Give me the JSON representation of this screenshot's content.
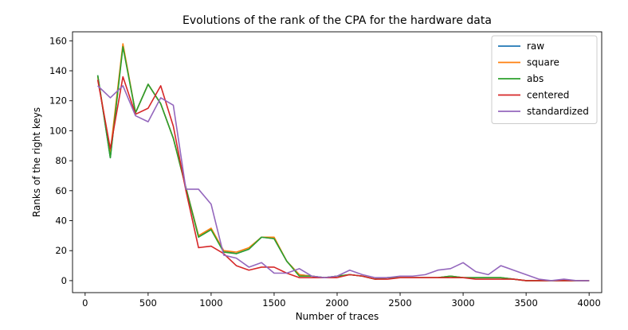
{
  "chart_data": {
    "type": "line",
    "title": "Evolutions of the rank of the CPA for the hardware data",
    "xlabel": "Number of traces",
    "ylabel": "Ranks of the right keys",
    "xlim": [
      -100,
      4100
    ],
    "ylim": [
      -8,
      166
    ],
    "xticks": [
      0,
      500,
      1000,
      1500,
      2000,
      2500,
      3000,
      3500,
      4000
    ],
    "yticks": [
      0,
      20,
      40,
      60,
      80,
      100,
      120,
      140,
      160
    ],
    "grid": false,
    "legend_position": "top-right",
    "x": [
      100,
      200,
      300,
      400,
      500,
      600,
      700,
      800,
      900,
      1000,
      1100,
      1200,
      1300,
      1400,
      1500,
      1600,
      1700,
      1800,
      1900,
      2000,
      2100,
      2200,
      2300,
      2400,
      2500,
      2600,
      2700,
      2800,
      2900,
      3000,
      3100,
      3200,
      3300,
      3400,
      3500,
      3600,
      3700,
      3800,
      3900,
      4000
    ],
    "series": [
      {
        "name": "raw",
        "color": "#1f77b4",
        "values": [
          137,
          82,
          157,
          112,
          131,
          118,
          95,
          62,
          30,
          34,
          20,
          18,
          21,
          29,
          28,
          13,
          4,
          3,
          2,
          3,
          4,
          3,
          1,
          2,
          2,
          2,
          2,
          2,
          3,
          2,
          2,
          2,
          2,
          1,
          0,
          0,
          0,
          0,
          0,
          0
        ]
      },
      {
        "name": "square",
        "color": "#ff7f0e",
        "values": [
          136,
          86,
          158,
          112,
          131,
          118,
          95,
          62,
          30,
          35,
          20,
          19,
          22,
          29,
          29,
          13,
          4,
          3,
          2,
          3,
          4,
          3,
          1,
          2,
          2,
          2,
          2,
          2,
          3,
          2,
          2,
          2,
          2,
          1,
          0,
          0,
          0,
          0,
          0,
          0
        ]
      },
      {
        "name": "abs",
        "color": "#2ca02c",
        "values": [
          137,
          82,
          156,
          112,
          131,
          118,
          95,
          62,
          29,
          34,
          19,
          18,
          21,
          29,
          28,
          13,
          3,
          3,
          2,
          3,
          4,
          3,
          1,
          2,
          2,
          2,
          2,
          2,
          3,
          2,
          2,
          2,
          2,
          1,
          0,
          0,
          0,
          0,
          0,
          0
        ]
      },
      {
        "name": "centered",
        "color": "#d62728",
        "values": [
          134,
          88,
          136,
          111,
          115,
          130,
          103,
          60,
          22,
          23,
          18,
          10,
          7,
          9,
          9,
          5,
          2,
          2,
          2,
          2,
          4,
          3,
          1,
          1,
          2,
          2,
          2,
          2,
          2,
          2,
          1,
          1,
          1,
          1,
          0,
          0,
          0,
          0,
          0,
          0
        ]
      },
      {
        "name": "standardized",
        "color": "#9467bd",
        "values": [
          130,
          122,
          130,
          110,
          106,
          122,
          117,
          61,
          61,
          51,
          17,
          15,
          9,
          12,
          5,
          5,
          8,
          3,
          2,
          3,
          7,
          4,
          2,
          2,
          3,
          3,
          4,
          7,
          8,
          12,
          6,
          4,
          10,
          7,
          4,
          1,
          0,
          1,
          0,
          0
        ]
      }
    ]
  }
}
